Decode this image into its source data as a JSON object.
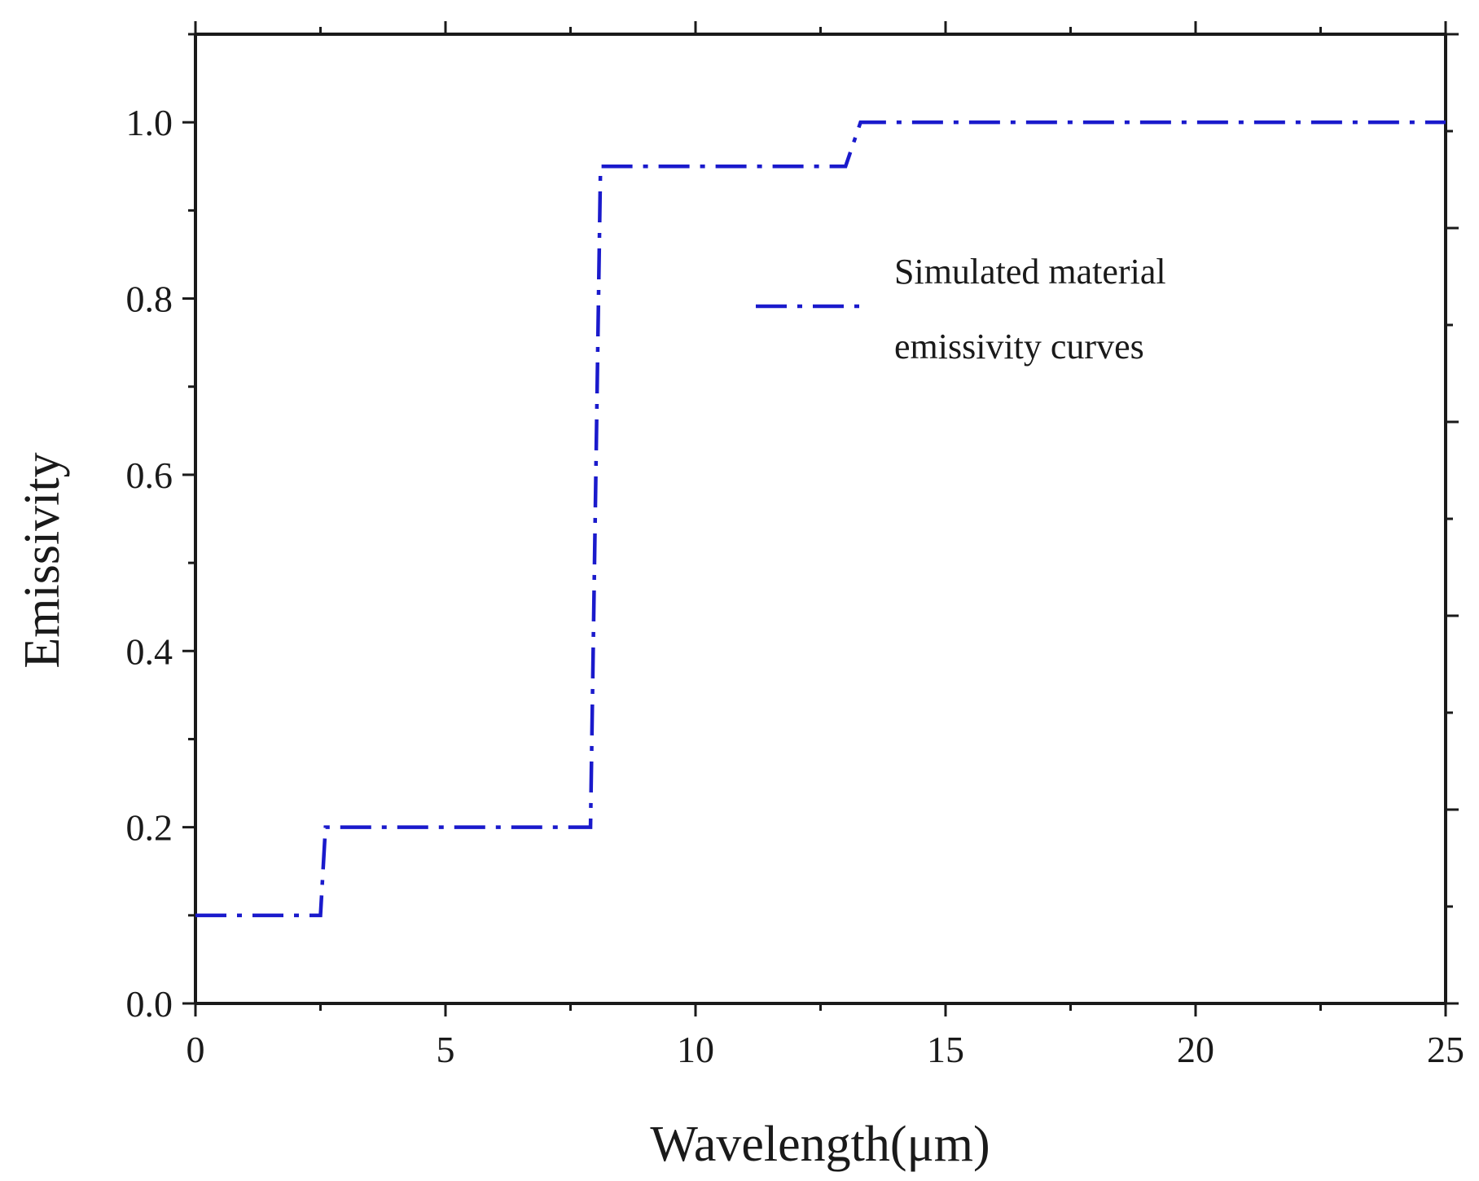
{
  "chart_data": {
    "type": "line",
    "title": "",
    "xlabel": "Wavelength(μm)",
    "ylabel": "Emissivity",
    "xlim": [
      0,
      25
    ],
    "ylim": [
      0,
      1.1
    ],
    "xticks": [
      0,
      5,
      10,
      15,
      20,
      25
    ],
    "xtick_labels": [
      "0",
      "5",
      "10",
      "15",
      "20",
      "25"
    ],
    "yticks": [
      0.0,
      0.2,
      0.4,
      0.6,
      0.8,
      1.0
    ],
    "ytick_labels": [
      "0.0",
      "0.2",
      "0.4",
      "0.6",
      "0.8",
      "1.0"
    ],
    "grid": false,
    "legend_position": "upper-right",
    "series": [
      {
        "name": "Simulated material emissivity curves",
        "legend_lines": [
          "Simulated material",
          "emissivity curves"
        ],
        "color": "#1a1acc",
        "line_style": "dash-dot",
        "x": [
          0,
          2.5,
          2.6,
          7.9,
          8.1,
          13.0,
          13.3,
          25
        ],
        "y": [
          0.1,
          0.1,
          0.2,
          0.2,
          0.95,
          0.95,
          1.0,
          1.0
        ]
      }
    ]
  }
}
